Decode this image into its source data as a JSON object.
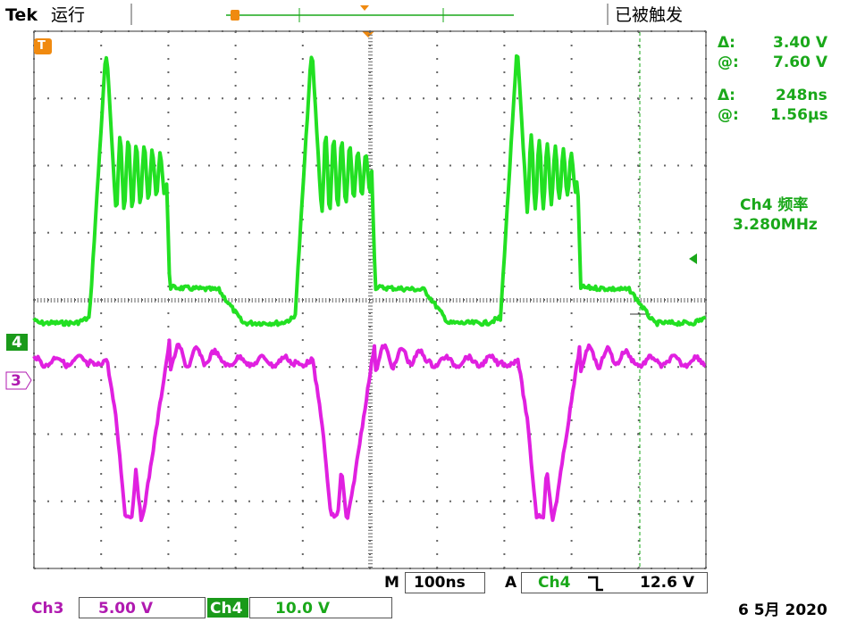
{
  "header": {
    "brand": "Tek",
    "status": "运行",
    "trigger_state": "已被触发"
  },
  "cursors": [
    {
      "delta_label": "Δ:",
      "delta": "3.40 V",
      "at_label": "@:",
      "at": "7.60 V"
    },
    {
      "delta_label": "Δ:",
      "delta": "248ns",
      "at_label": "@:",
      "at": "1.56µs"
    }
  ],
  "measurement": {
    "label": "Ch4 频率",
    "value": "3.280MHz"
  },
  "markers": {
    "trigger": "T",
    "ch4": "4",
    "ch3": "3"
  },
  "timebase": {
    "label": "M",
    "value": "100ns"
  },
  "trigger": {
    "label": "A",
    "source": "Ch4",
    "level": "12.6 V"
  },
  "channels": [
    {
      "name": "Ch3",
      "scale": "5.00 V"
    },
    {
      "name": "Ch4",
      "scale": "10.0 V"
    }
  ],
  "date": "6 5月 2020"
}
